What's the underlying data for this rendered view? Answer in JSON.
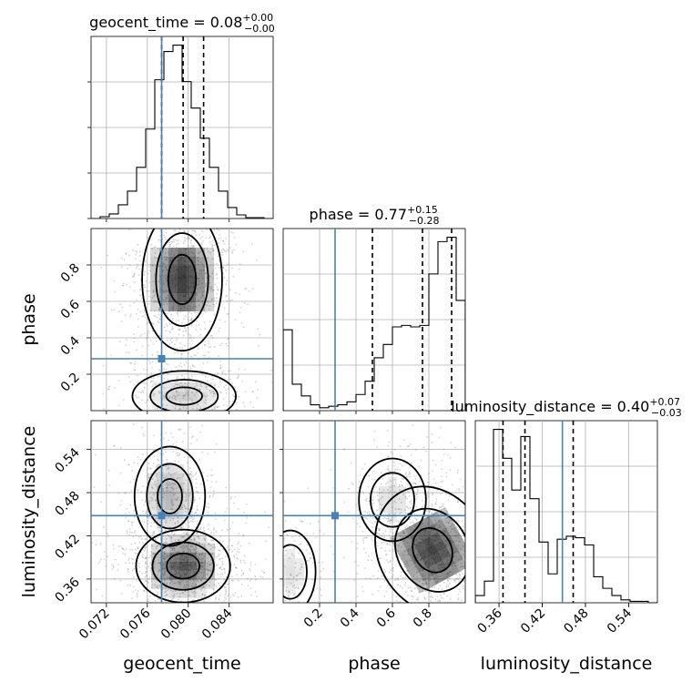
{
  "chart_data": {
    "type": "corner",
    "parameters": [
      "geocent_time",
      "phase",
      "luminosity_distance"
    ],
    "truths": {
      "geocent_time": 0.0774,
      "phase": 0.285,
      "luminosity_distance": 0.448
    },
    "titles": [
      {
        "text": "geocent_time = 0.08",
        "sup": "+0.00",
        "sub": "−0.00"
      },
      {
        "text": "phase = 0.77",
        "sup": "+0.15",
        "sub": "−0.28"
      },
      {
        "text": "luminosity_distance = 0.40",
        "sup": "+0.07",
        "sub": "−0.03"
      }
    ],
    "axes": {
      "geocent_time": {
        "range": [
          0.0705,
          0.0883
        ],
        "ticks": [
          0.072,
          0.076,
          0.08,
          0.084
        ],
        "tick_labels": [
          "0.072",
          "0.076",
          "0.080",
          "0.084"
        ]
      },
      "phase": {
        "range": [
          0.0,
          1.0
        ],
        "ticks": [
          0.2,
          0.4,
          0.6,
          0.8
        ],
        "tick_labels": [
          "0.2",
          "0.4",
          "0.6",
          "0.8"
        ]
      },
      "luminosity_distance": {
        "range": [
          0.327,
          0.58
        ],
        "ticks": [
          0.36,
          0.42,
          0.48,
          0.54
        ],
        "tick_labels": [
          "0.36",
          "0.42",
          "0.48",
          "0.54"
        ]
      }
    },
    "histograms": [
      {
        "param": "geocent_time",
        "quantiles": [
          0.0774,
          0.0795,
          0.0815
        ],
        "edges": [
          0.0705,
          0.07139,
          0.07228,
          0.07317,
          0.07406,
          0.07495,
          0.07584,
          0.07673,
          0.07762,
          0.07851,
          0.0794,
          0.08029,
          0.08118,
          0.08207,
          0.08296,
          0.08385,
          0.08474,
          0.08563,
          0.08652,
          0.08741,
          0.0883
        ],
        "counts": [
          0,
          2,
          5,
          15,
          30,
          56,
          98,
          152,
          183,
          190,
          150,
          121,
          88,
          56,
          30,
          12,
          4,
          1,
          1,
          0
        ]
      },
      {
        "param": "phase",
        "quantiles": [
          0.49,
          0.765,
          0.925
        ],
        "edges": [
          0.0,
          0.05,
          0.1,
          0.15,
          0.2,
          0.25,
          0.3,
          0.35,
          0.4,
          0.45,
          0.5,
          0.55,
          0.6,
          0.65,
          0.7,
          0.75,
          0.8,
          0.85,
          0.9,
          0.95,
          1.0
        ],
        "counts": [
          55,
          18,
          10,
          4,
          2,
          3,
          4,
          6,
          11,
          20,
          36,
          45,
          57,
          58,
          57,
          58,
          93,
          115,
          118,
          75
        ]
      },
      {
        "param": "luminosity_distance",
        "quantiles": [
          0.3655,
          0.396,
          0.463
        ],
        "edges": [
          0.327,
          0.33965,
          0.3523,
          0.36495,
          0.3776,
          0.39025,
          0.4029,
          0.41555,
          0.4282,
          0.44085,
          0.4535,
          0.46615,
          0.4788,
          0.49145,
          0.5041,
          0.51675,
          0.5294,
          0.54205,
          0.5547,
          0.56735,
          0.58
        ],
        "counts": [
          5,
          15,
          120,
          100,
          78,
          115,
          72,
          42,
          20,
          44,
          46,
          45,
          40,
          18,
          10,
          5,
          2,
          1,
          1,
          0
        ]
      }
    ],
    "contour_levels": [
      0.39,
      0.86,
      0.99
    ]
  }
}
